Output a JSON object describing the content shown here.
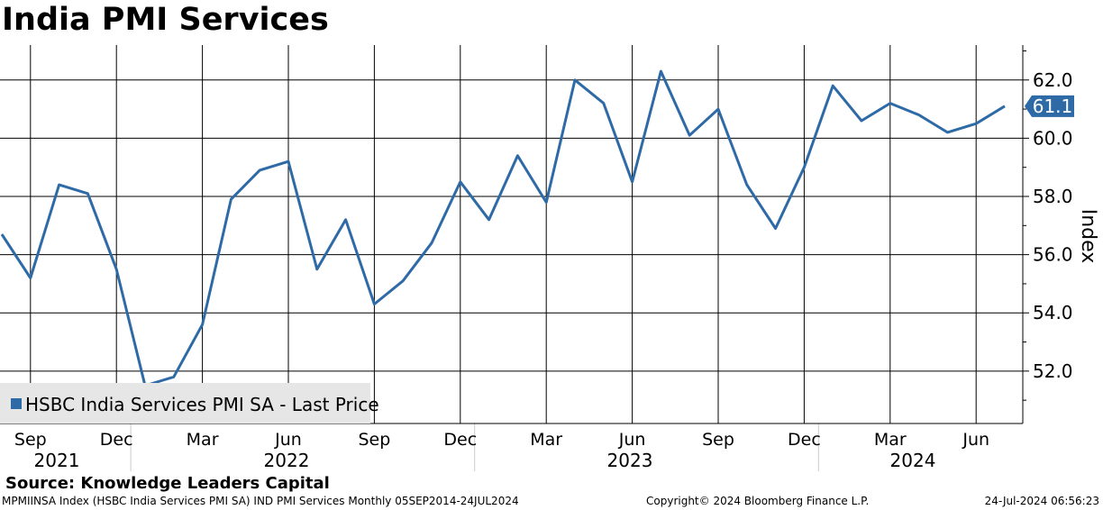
{
  "title": "India PMI Services",
  "source": "Source: Knowledge Leaders Capital",
  "footer": {
    "left": "MPMIINSA Index (HSBC India Services PMI SA) IND PMI Services  Monthly 05SEP2014-24JUL2024",
    "middle": "Copyright© 2024 Bloomberg Finance L.P.",
    "right": "24-Jul-2024 06:56:23"
  },
  "colors": {
    "line": "#2e6aa6",
    "last_label_bg": "#2e6aa6",
    "grid": "#000000"
  },
  "chart_data": {
    "type": "line",
    "title": "India PMI Services",
    "ylabel": "Index",
    "ylim": [
      50.2,
      63.2
    ],
    "yticks": [
      "52.0",
      "54.0",
      "56.0",
      "58.0",
      "60.0",
      "62.0"
    ],
    "x_month_labels": [
      "Sep",
      "Dec",
      "Mar",
      "Jun",
      "Sep",
      "Dec",
      "Mar",
      "Jun",
      "Sep",
      "Dec",
      "Mar",
      "Jun"
    ],
    "x_year_labels": [
      "2021",
      "2022",
      "2023",
      "2024"
    ],
    "legend": "HSBC India Services PMI SA - Last Price",
    "legend_position": "bottom-left",
    "last_value_label": "61.1",
    "series": [
      {
        "name": "HSBC India Services PMI SA - Last Price",
        "x": [
          "2021-08",
          "2021-09",
          "2021-10",
          "2021-11",
          "2021-12",
          "2022-01",
          "2022-02",
          "2022-03",
          "2022-04",
          "2022-05",
          "2022-06",
          "2022-07",
          "2022-08",
          "2022-09",
          "2022-10",
          "2022-11",
          "2022-12",
          "2023-01",
          "2023-02",
          "2023-03",
          "2023-04",
          "2023-05",
          "2023-06",
          "2023-07",
          "2023-08",
          "2023-09",
          "2023-10",
          "2023-11",
          "2023-12",
          "2024-01",
          "2024-02",
          "2024-03",
          "2024-04",
          "2024-05",
          "2024-06",
          "2024-07"
        ],
        "values": [
          56.7,
          55.2,
          58.4,
          58.1,
          55.5,
          51.5,
          51.8,
          53.6,
          57.9,
          58.9,
          59.2,
          55.5,
          57.2,
          54.3,
          55.1,
          56.4,
          58.5,
          57.2,
          59.4,
          57.8,
          62.0,
          61.2,
          58.5,
          62.3,
          60.1,
          61.0,
          58.4,
          56.9,
          59.0,
          61.8,
          60.6,
          61.2,
          60.8,
          60.2,
          60.5,
          61.1
        ]
      }
    ]
  }
}
